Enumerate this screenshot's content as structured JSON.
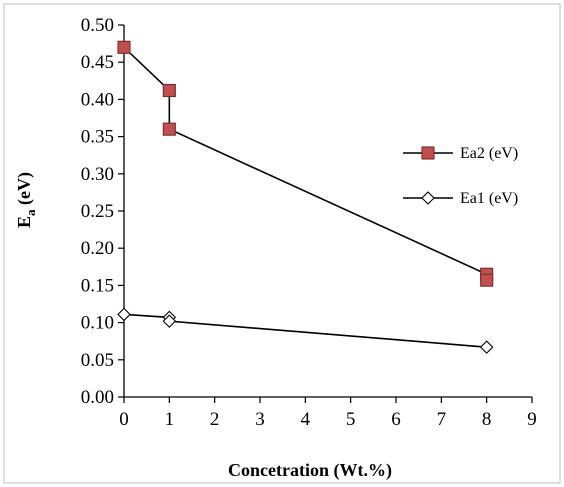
{
  "chart_data": {
    "type": "line",
    "title": "",
    "xlabel": "Concetration  (Wt.%)",
    "ylabel_main": "E",
    "ylabel_sub": "a",
    "ylabel_unit": " (eV)",
    "xlim": [
      0,
      9
    ],
    "ylim": [
      0,
      0.5
    ],
    "xticks": [
      "0",
      "1",
      "2",
      "3",
      "4",
      "5",
      "6",
      "7",
      "8",
      "9"
    ],
    "yticks": [
      "0.00",
      "0.05",
      "0.10",
      "0.15",
      "0.20",
      "0.25",
      "0.30",
      "0.35",
      "0.40",
      "0.45",
      "0.50"
    ],
    "grid": false,
    "legend_position": "right",
    "series": [
      {
        "name": "Ea2 (eV)",
        "marker": "square",
        "color": "#c0504d",
        "edge_color": "#7a2a28",
        "x": [
          0,
          1,
          1,
          8,
          8
        ],
        "y": [
          0.47,
          0.412,
          0.36,
          0.165,
          0.157
        ]
      },
      {
        "name": "Ea1 (eV)",
        "marker": "diamond",
        "color": "#ffffff",
        "edge_color": "#000000",
        "x": [
          0,
          1,
          1,
          8
        ],
        "y": [
          0.111,
          0.107,
          0.102,
          0.067
        ]
      }
    ]
  }
}
